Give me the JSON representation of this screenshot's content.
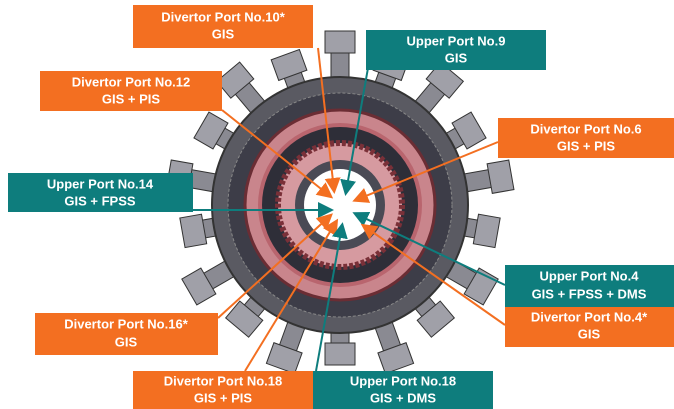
{
  "labels": [
    {
      "line1": "Divertor Port No.10*",
      "line2": "GIS"
    },
    {
      "line1": "Upper Port No.9",
      "line2": "GIS"
    },
    {
      "line1": "Divertor Port No.12",
      "line2": "GIS + PIS"
    },
    {
      "line1": "Divertor Port No.6",
      "line2": "GIS + PIS"
    },
    {
      "line1": "Upper Port No.14",
      "line2": "GIS + FPSS"
    },
    {
      "line1": "Upper Port No.4",
      "line2": "GIS + FPSS + DMS"
    },
    {
      "line1": "Divertor Port No.4*",
      "line2": "GIS"
    },
    {
      "line1": "Divertor Port No.16*",
      "line2": "GIS"
    },
    {
      "line1": "Divertor Port No.18",
      "line2": "GIS + PIS"
    },
    {
      "line1": "Upper Port No.18",
      "line2": "GIS + DMS"
    }
  ]
}
